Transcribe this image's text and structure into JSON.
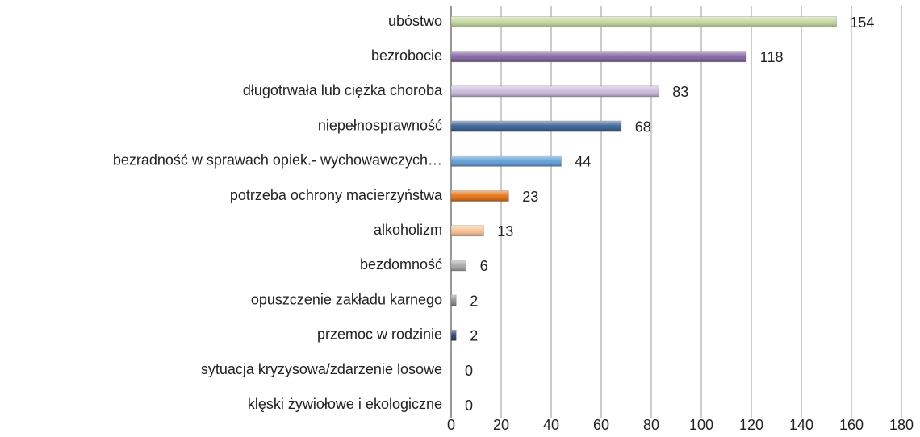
{
  "chart_data": {
    "type": "bar",
    "orientation": "horizontal",
    "categories": [
      "ubóstwo",
      "bezrobocie",
      "długotrwała lub ciężka choroba",
      "niepełnosprawność",
      "bezradność w sprawach opiek.- wychowawczych…",
      "potrzeba ochrony macierzyństwa",
      "alkoholizm",
      "bezdomność",
      "opuszczenie zakładu karnego",
      "przemoc w rodzinie",
      "sytuacja kryzysowa/zdarzenie losowe",
      "klęski żywiołowe i ekologiczne"
    ],
    "values": [
      154,
      118,
      83,
      68,
      44,
      23,
      13,
      6,
      2,
      2,
      0,
      0
    ],
    "colors": [
      "#c3d69b",
      "#7e5f9e",
      "#c9b8dc",
      "#2e5a90",
      "#5b9bd5",
      "#e46c0a",
      "#fac090",
      "#a6a6a6",
      "#8c8c8c",
      "#1f3864",
      "#8c8c8c",
      "#8c8c8c"
    ],
    "xlim": [
      0,
      180
    ],
    "xticks": [
      0,
      20,
      40,
      60,
      80,
      100,
      120,
      140,
      160,
      180
    ],
    "grid": true
  }
}
